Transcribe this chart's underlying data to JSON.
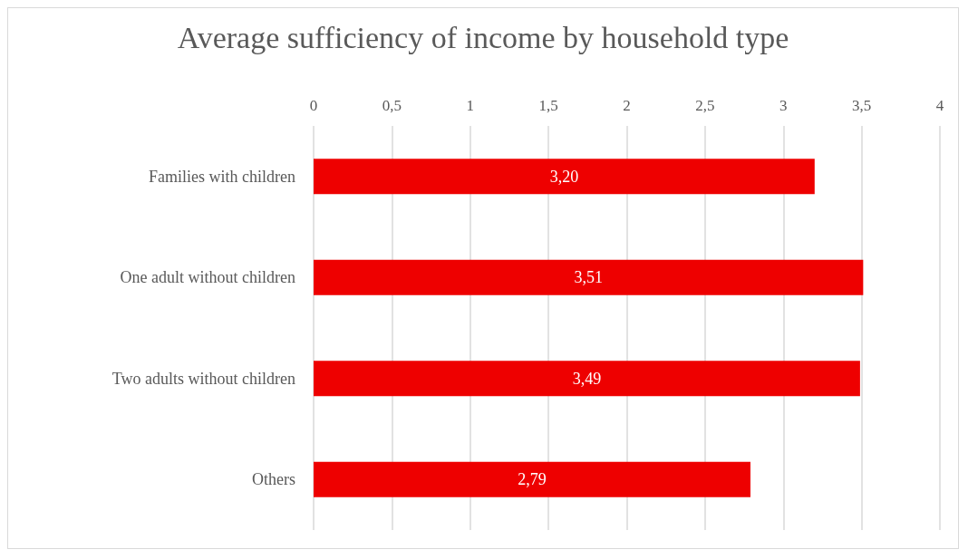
{
  "chart_data": {
    "type": "bar",
    "orientation": "horizontal",
    "title": "Average sufficiency of income by household type",
    "categories": [
      "Families with children",
      "One adult without children",
      "Two adults without children",
      "Others"
    ],
    "values": [
      3.2,
      3.51,
      3.49,
      2.79
    ],
    "value_labels": [
      "3,20",
      "3,51",
      "3,49",
      "2,79"
    ],
    "color": "#ee0000",
    "xlim": [
      0,
      4
    ],
    "xticks": [
      0,
      {
        "value": 0.5,
        "label": "0,5"
      },
      1,
      {
        "value": 1.5,
        "label": "1,5"
      },
      2,
      {
        "value": 2.5,
        "label": "2,5"
      },
      3,
      {
        "value": 3.5,
        "label": "3,5"
      },
      4
    ],
    "grid": "x"
  }
}
